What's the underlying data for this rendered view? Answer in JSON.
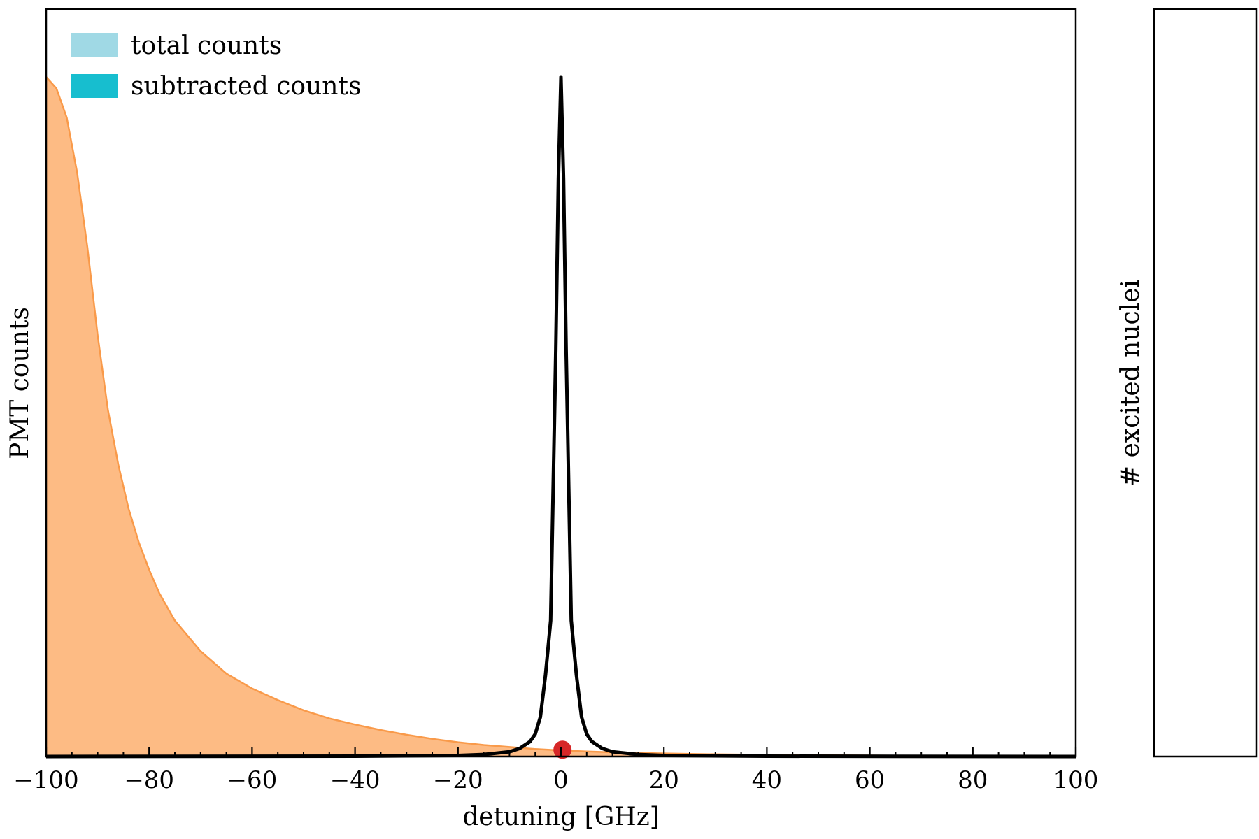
{
  "chart_data": {
    "type": "area",
    "xlabel": "detuning [GHz]",
    "ylabel": "PMT counts",
    "y2label": "# excited nuclei",
    "xlim": [
      -100,
      100
    ],
    "x_ticks": [
      -100,
      -80,
      -60,
      -40,
      -20,
      0,
      20,
      40,
      60,
      80,
      100
    ],
    "x_tick_labels": [
      "−100",
      "−80",
      "−60",
      "−40",
      "−20",
      "0",
      "20",
      "40",
      "60",
      "80",
      "100"
    ],
    "x_minor_tick_step": 5,
    "y_tick_labels": "none",
    "grid": false,
    "legend": {
      "position": "top-left",
      "entries": [
        {
          "label": "total counts",
          "color": "#a0d9e5"
        },
        {
          "label": "subtracted counts",
          "color": "#17becf"
        }
      ]
    },
    "series": [
      {
        "color": "#fdbb84",
        "edge_color": "#f99a4a",
        "style": "filled-area",
        "x": [
          -100,
          -98,
          -96,
          -94,
          -92,
          -90,
          -88,
          -86,
          -84,
          -82,
          -80,
          -78,
          -75,
          -70,
          -65,
          -60,
          -55,
          -50,
          -45,
          -40,
          -35,
          -30,
          -25,
          -20,
          -15,
          -10,
          -5,
          0,
          5,
          10,
          20,
          30,
          40,
          50,
          60,
          70,
          80,
          90,
          100
        ],
        "y": [
          1.0,
          0.983,
          0.94,
          0.86,
          0.75,
          0.62,
          0.51,
          0.43,
          0.365,
          0.315,
          0.275,
          0.24,
          0.2,
          0.155,
          0.122,
          0.1,
          0.083,
          0.068,
          0.056,
          0.047,
          0.039,
          0.032,
          0.026,
          0.021,
          0.017,
          0.014,
          0.011,
          0.009,
          0.0075,
          0.0062,
          0.0045,
          0.0033,
          0.0025,
          0.0019,
          0.0014,
          0.001,
          0.0007,
          0.0004,
          0.0002
        ]
      },
      {
        "color": "#000000",
        "style": "line",
        "x": [
          -100,
          -40,
          -20,
          -15,
          -10,
          -8,
          -6,
          -5,
          -4,
          -3,
          -2,
          -1,
          -0.5,
          0,
          0.5,
          1,
          2,
          3,
          4,
          5,
          6,
          8,
          10,
          15,
          20,
          40,
          100
        ],
        "y": [
          0.0,
          0.0005,
          0.0015,
          0.003,
          0.007,
          0.012,
          0.022,
          0.033,
          0.058,
          0.12,
          0.2,
          0.6,
          0.85,
          1.0,
          0.85,
          0.6,
          0.2,
          0.12,
          0.058,
          0.033,
          0.022,
          0.012,
          0.007,
          0.003,
          0.0015,
          0.0005,
          0.0
        ]
      }
    ],
    "markers": [
      {
        "x": 0.3,
        "y": 0.01,
        "color": "#d62728"
      }
    ]
  }
}
